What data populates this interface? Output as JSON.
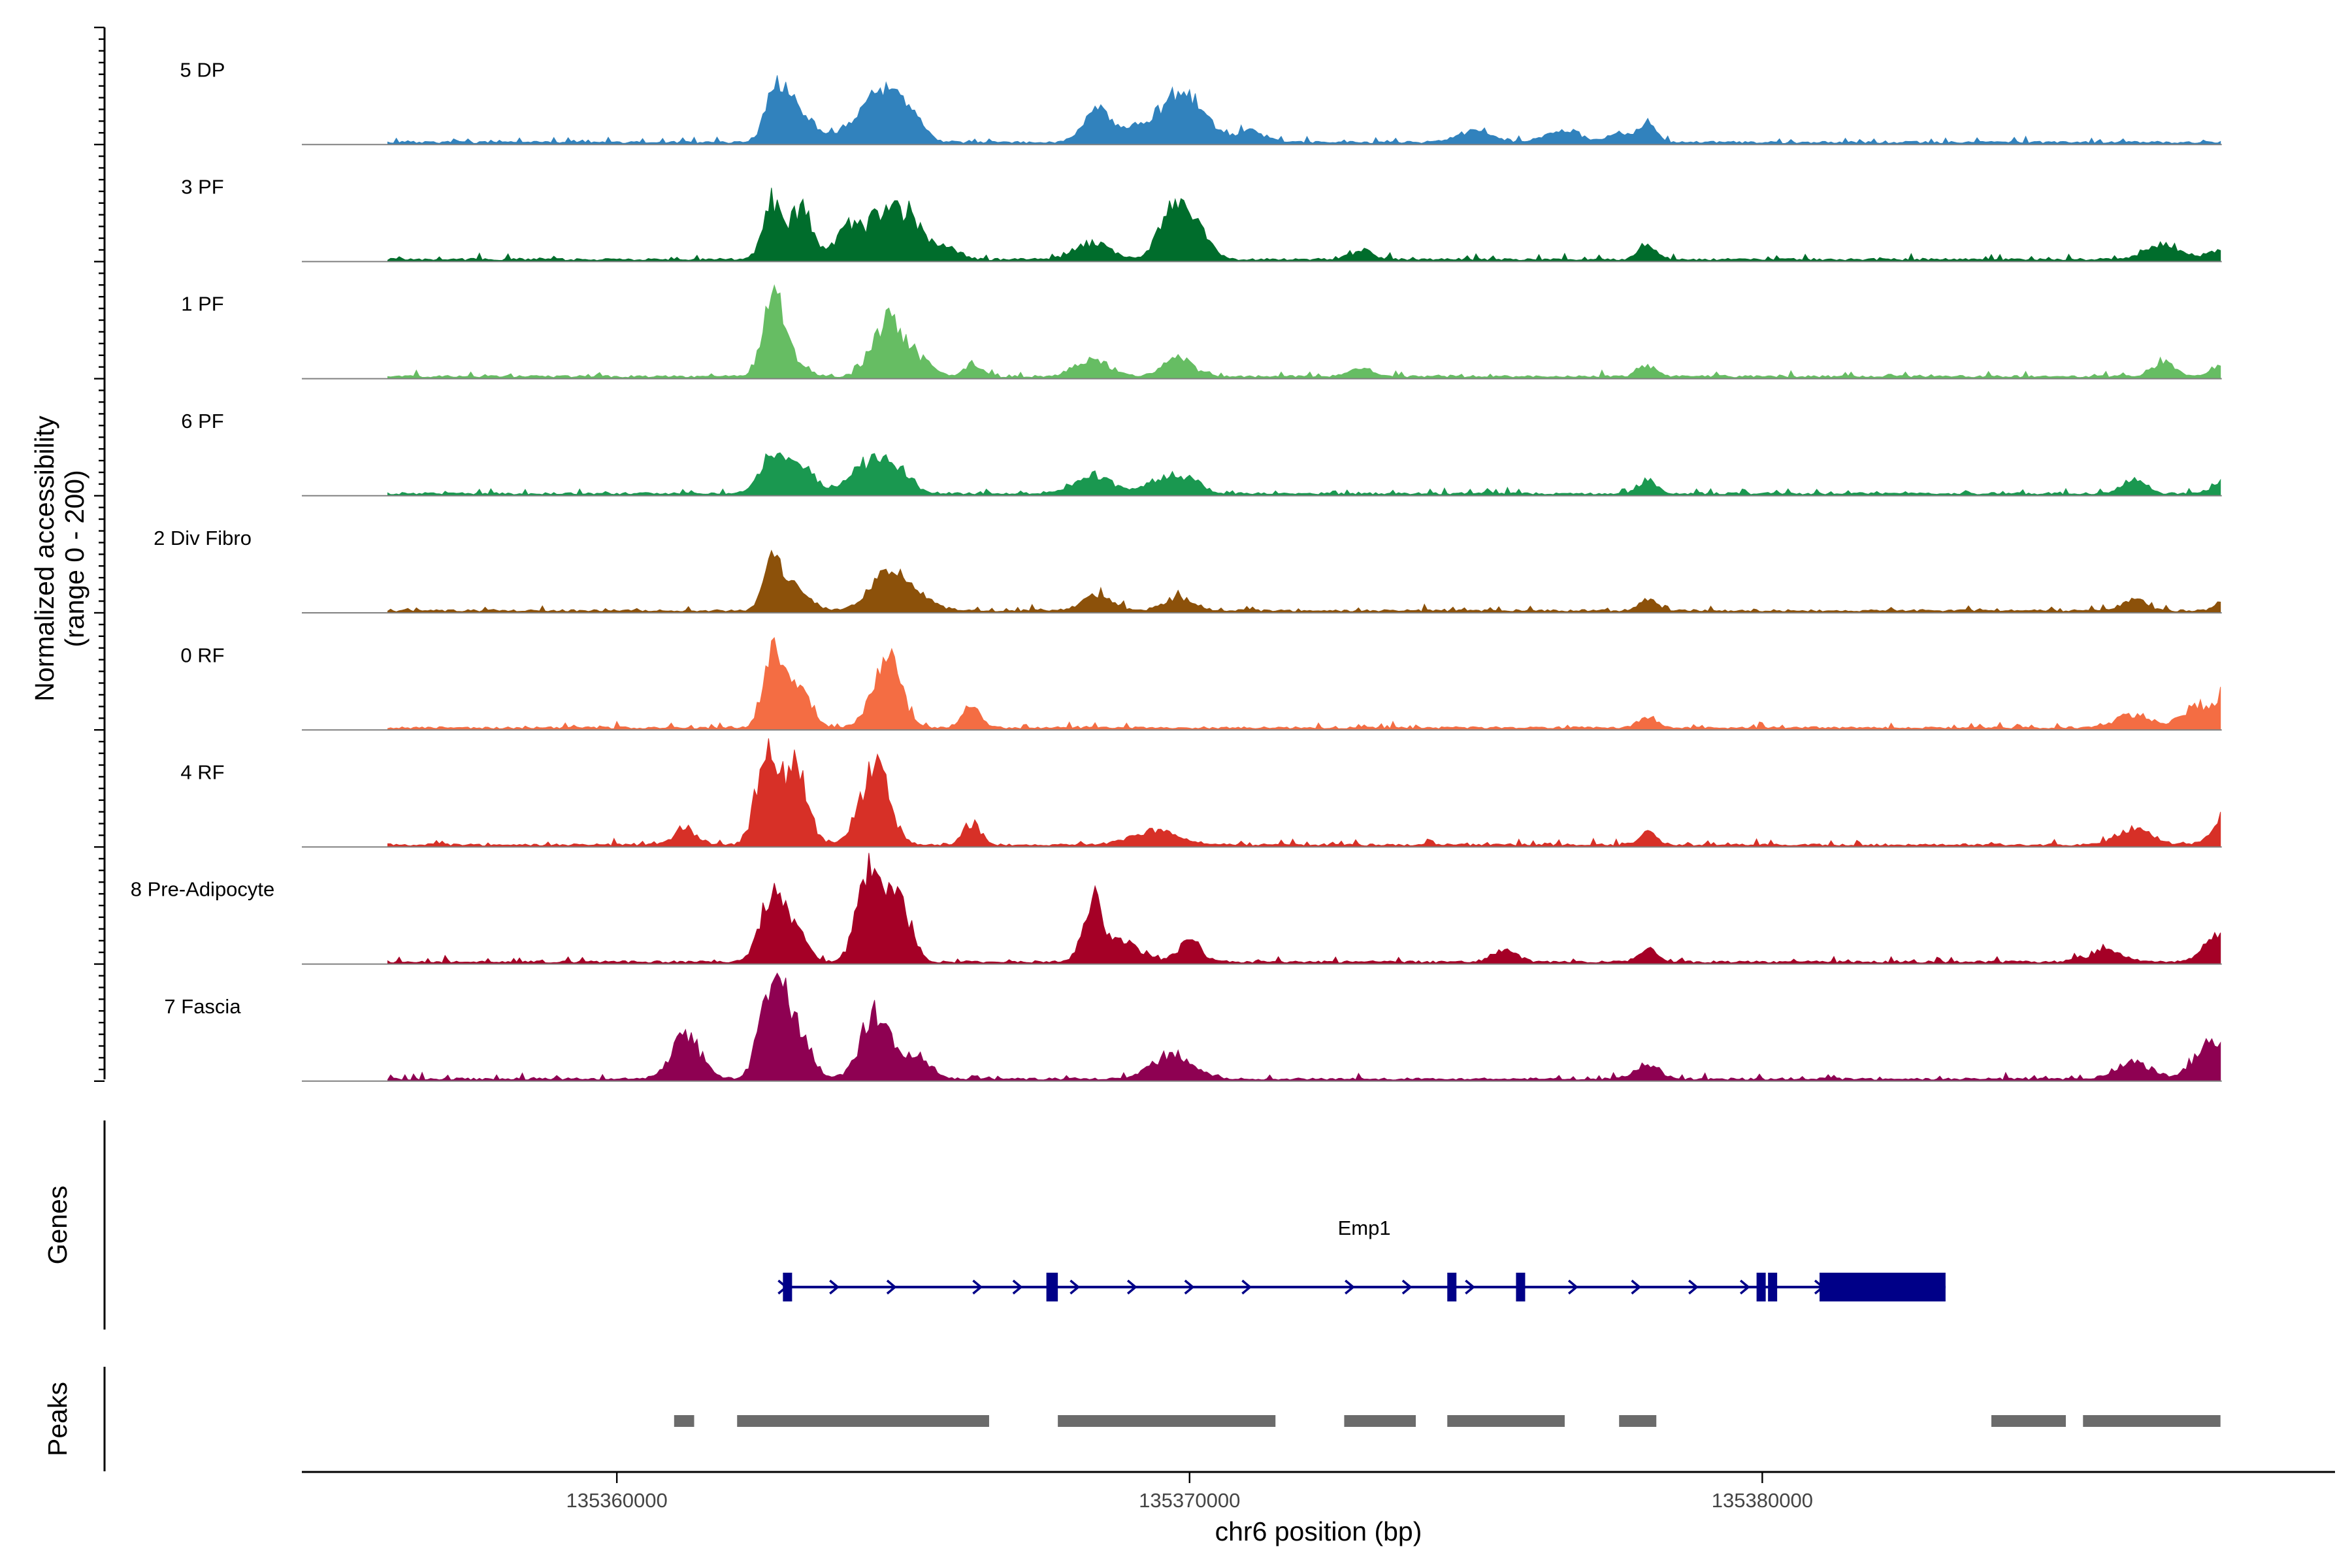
{
  "chart_data": {
    "type": "area",
    "title": "",
    "ylabel_line1": "Normalized accessibility",
    "ylabel_line2": "(range 0 - 200)",
    "xlabel": "chr6 position (bp)",
    "xlim": [
      135354500,
      135390000
    ],
    "ylim": [
      0,
      200
    ],
    "x_ticks": [
      135360000,
      135370000,
      135380000
    ],
    "x_tick_labels": [
      "135360000",
      "135370000",
      "135380000"
    ],
    "signal_range": [
      135356000,
      135388000
    ],
    "tracks": [
      {
        "name": "5 DP",
        "color": "#3182BD",
        "peaks": [
          [
            135362800,
            85,
            200
          ],
          [
            135363200,
            50,
            250
          ],
          [
            135364400,
            55,
            350
          ],
          [
            135364800,
            65,
            250
          ],
          [
            135365200,
            35,
            200
          ],
          [
            135368400,
            55,
            250
          ],
          [
            135369400,
            45,
            350
          ],
          [
            135369900,
            70,
            250
          ],
          [
            135370300,
            25,
            200
          ],
          [
            135371000,
            20,
            300
          ],
          [
            135375000,
            20,
            300
          ],
          [
            135376500,
            22,
            300
          ],
          [
            135378000,
            35,
            150
          ],
          [
            135377500,
            15,
            200
          ]
        ]
      },
      {
        "name": "3 PF",
        "color": "#006D2C",
        "peaks": [
          [
            135362700,
            100,
            150
          ],
          [
            135363200,
            95,
            200
          ],
          [
            135364000,
            45,
            200
          ],
          [
            135364700,
            85,
            350
          ],
          [
            135365200,
            40,
            250
          ],
          [
            135365800,
            20,
            200
          ],
          [
            135368300,
            30,
            300
          ],
          [
            135369600,
            65,
            200
          ],
          [
            135369900,
            60,
            200
          ],
          [
            135370200,
            40,
            200
          ],
          [
            135373000,
            15,
            200
          ],
          [
            135378000,
            30,
            150
          ],
          [
            135387000,
            25,
            300
          ],
          [
            135388200,
            28,
            300
          ]
        ]
      },
      {
        "name": "1 PF",
        "color": "#66BD63",
        "peaks": [
          [
            135362700,
            120,
            150
          ],
          [
            135362900,
            55,
            250
          ],
          [
            135364700,
            95,
            250
          ],
          [
            135365200,
            35,
            250
          ],
          [
            135366200,
            22,
            150
          ],
          [
            135368300,
            30,
            300
          ],
          [
            135369800,
            35,
            250
          ],
          [
            135373000,
            15,
            200
          ],
          [
            135378000,
            20,
            150
          ],
          [
            135387000,
            25,
            200
          ],
          [
            135388200,
            30,
            250
          ]
        ]
      },
      {
        "name": "6 PF",
        "color": "#1A9850",
        "peaks": [
          [
            135362700,
            70,
            200
          ],
          [
            135363200,
            50,
            250
          ],
          [
            135364400,
            55,
            300
          ],
          [
            135364900,
            40,
            250
          ],
          [
            135368300,
            35,
            300
          ],
          [
            135369500,
            25,
            300
          ],
          [
            135370000,
            20,
            250
          ],
          [
            135378000,
            25,
            150
          ],
          [
            135386500,
            25,
            200
          ],
          [
            135388200,
            35,
            250
          ]
        ]
      },
      {
        "name": "2 Div Fibro",
        "color": "#8C510A",
        "peaks": [
          [
            135362700,
            85,
            150
          ],
          [
            135363100,
            45,
            250
          ],
          [
            135364700,
            65,
            300
          ],
          [
            135365200,
            25,
            300
          ],
          [
            135368400,
            30,
            250
          ],
          [
            135369800,
            25,
            250
          ],
          [
            135378000,
            20,
            150
          ],
          [
            135386500,
            20,
            200
          ],
          [
            135388200,
            28,
            200
          ]
        ]
      },
      {
        "name": "0 RF",
        "color": "#F46D43",
        "peaks": [
          [
            135362700,
            120,
            150
          ],
          [
            135363100,
            75,
            250
          ],
          [
            135364700,
            125,
            250
          ],
          [
            135366200,
            40,
            150
          ],
          [
            135378000,
            22,
            150
          ],
          [
            135386500,
            25,
            300
          ],
          [
            135387600,
            40,
            250
          ],
          [
            135388200,
            80,
            200
          ]
        ]
      },
      {
        "name": "4 RF",
        "color": "#D73027",
        "peaks": [
          [
            135361200,
            28,
            200
          ],
          [
            135362600,
            155,
            180
          ],
          [
            135363100,
            140,
            220
          ],
          [
            135364500,
            140,
            250
          ],
          [
            135366200,
            40,
            150
          ],
          [
            135369400,
            25,
            400
          ],
          [
            135378000,
            22,
            150
          ],
          [
            135386500,
            30,
            300
          ],
          [
            135388200,
            70,
            250
          ]
        ]
      },
      {
        "name": "8 Pre-Adipocyte",
        "color": "#A50026",
        "peaks": [
          [
            135362700,
            115,
            200
          ],
          [
            135363100,
            60,
            200
          ],
          [
            135364400,
            175,
            200
          ],
          [
            135364900,
            130,
            200
          ],
          [
            135368300,
            110,
            150
          ],
          [
            135368800,
            40,
            300
          ],
          [
            135370000,
            35,
            200
          ],
          [
            135375500,
            25,
            200
          ],
          [
            135378000,
            25,
            150
          ],
          [
            135386000,
            20,
            300
          ],
          [
            135388000,
            55,
            250
          ]
        ]
      },
      {
        "name": "7 Fascia",
        "color": "#8E0152",
        "peaks": [
          [
            135361200,
            80,
            250
          ],
          [
            135362700,
            160,
            200
          ],
          [
            135363100,
            100,
            250
          ],
          [
            135364500,
            115,
            250
          ],
          [
            135365200,
            40,
            250
          ],
          [
            135369700,
            45,
            350
          ],
          [
            135378000,
            25,
            200
          ],
          [
            135386500,
            30,
            300
          ],
          [
            135387800,
            70,
            250
          ]
        ]
      }
    ],
    "gene_track": {
      "label": "Genes",
      "gene_name": "Emp1",
      "color": "#000088",
      "start": 135362900,
      "end": 135383200,
      "exons": [
        [
          135362900,
          135363050
        ],
        [
          135367500,
          135367700
        ],
        [
          135374500,
          135374600
        ],
        [
          135375700,
          135375800
        ],
        [
          135379900,
          135380000
        ],
        [
          135380100,
          135380200
        ],
        [
          135381000,
          135383200
        ]
      ],
      "arrows": [
        135362900,
        135363800,
        135364800,
        135366300,
        135367000,
        135368000,
        135369000,
        135370000,
        135371000,
        135372800,
        135373800,
        135374900,
        135375800,
        135376700,
        135377800,
        135378800,
        135379700,
        135381000
      ]
    },
    "peak_track": {
      "label": "Peaks",
      "color": "#6B6B6B",
      "regions": [
        [
          135361000,
          135361350
        ],
        [
          135362100,
          135366500
        ],
        [
          135367700,
          135371500
        ],
        [
          135372700,
          135373950
        ],
        [
          135374500,
          135376550
        ],
        [
          135377500,
          135378150
        ],
        [
          135384000,
          135385300
        ],
        [
          135385600,
          135388000
        ]
      ]
    }
  }
}
